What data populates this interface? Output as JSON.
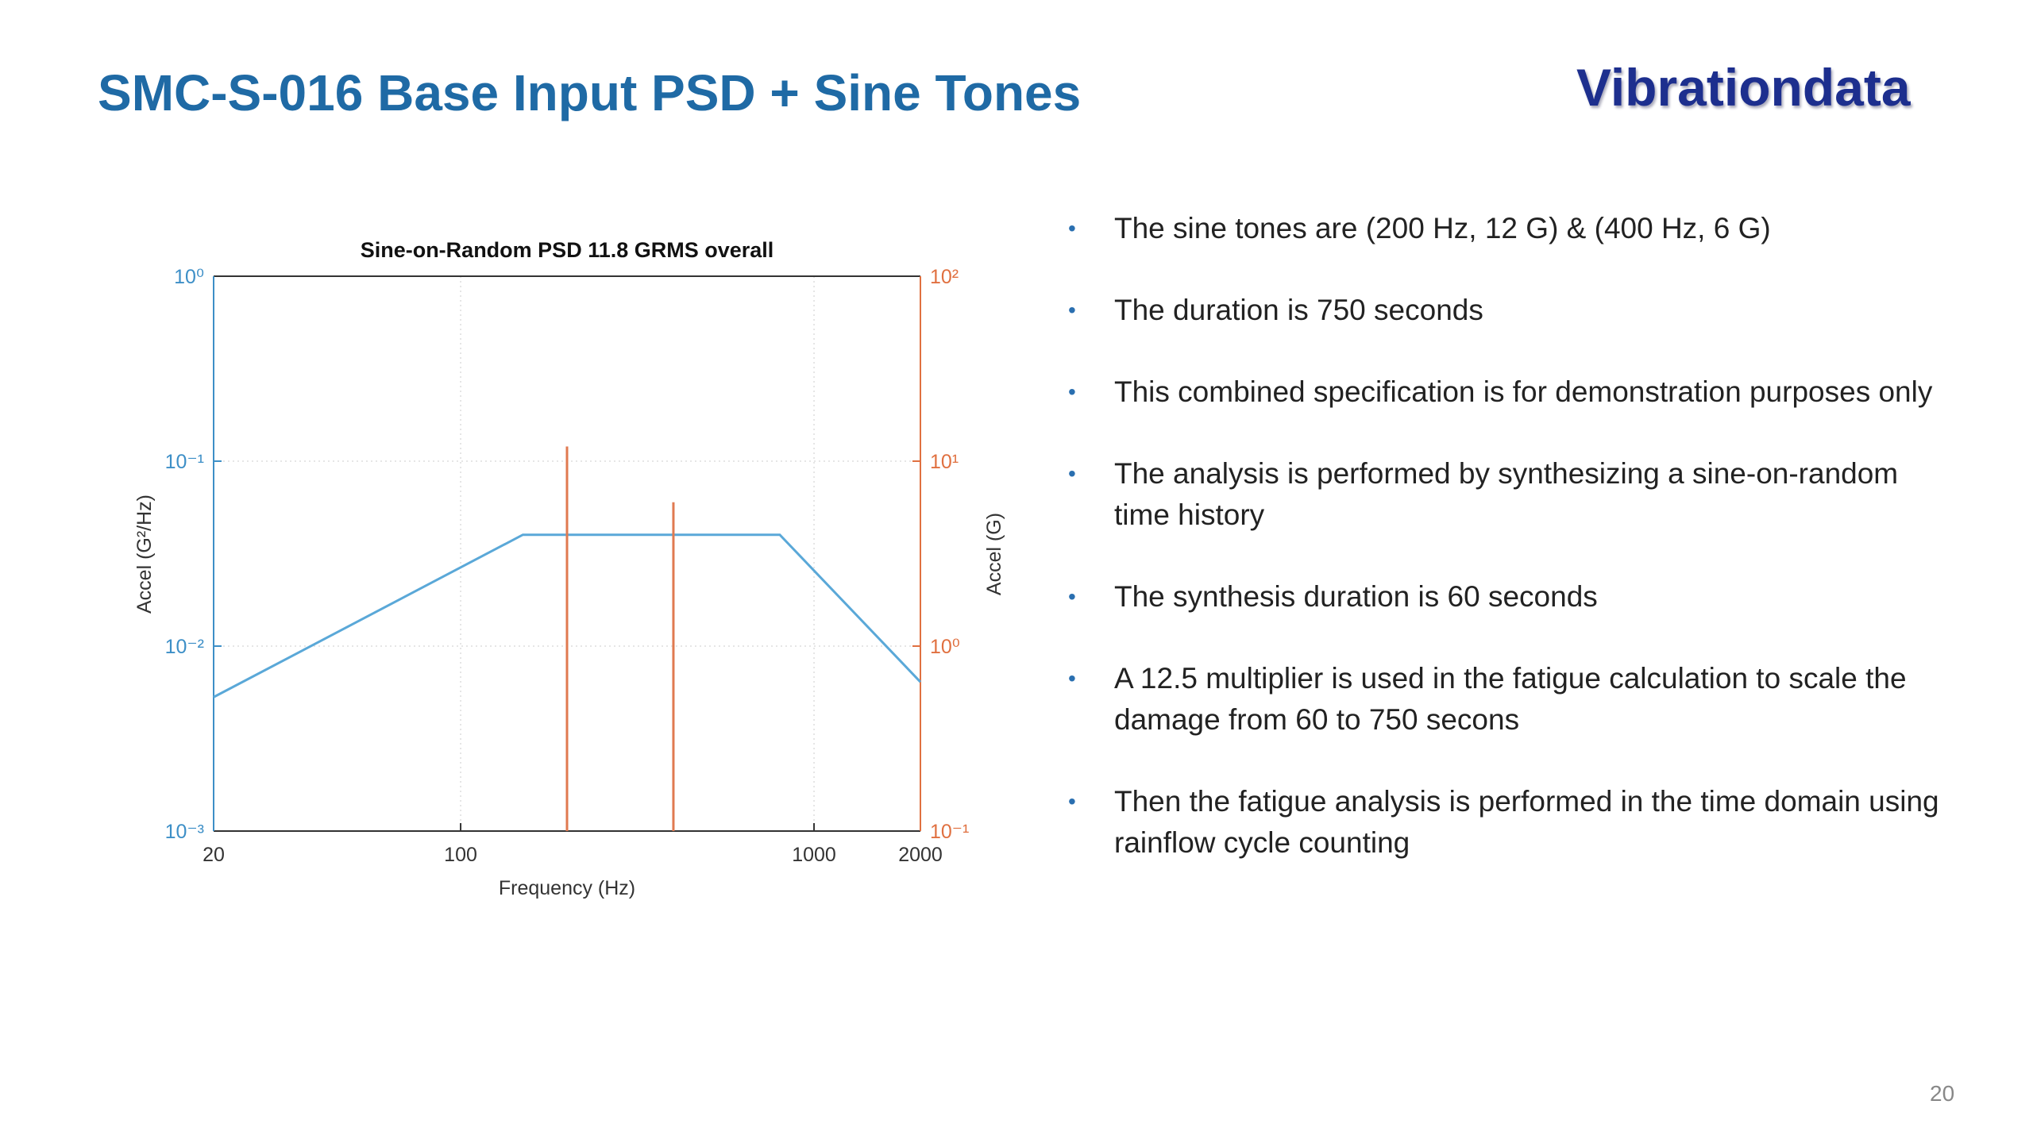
{
  "slide": {
    "title": "SMC-S-016 Base Input PSD + Sine Tones",
    "brand": "Vibrationdata",
    "page_number": "20",
    "bullets": [
      "The sine tones are (200 Hz, 12 G) & (400 Hz, 6 G)",
      "The duration is 750 seconds",
      "This combined specification is for demonstration purposes only",
      "The analysis is performed by synthesizing a sine-on-random time history",
      "The synthesis duration is 60 seconds",
      "A 12.5 multiplier is used in the fatigue calculation to scale the damage from 60 to 750 secons",
      "Then the fatigue analysis is performed in the time domain using rainflow cycle counting"
    ]
  },
  "chart_data": {
    "type": "line",
    "title": "Sine-on-Random PSD     11.8 GRMS overall",
    "xlabel": "Frequency (Hz)",
    "ylabel": "Accel (G²/Hz)",
    "y2label": "Accel (G)",
    "log_x": true,
    "log_y": true,
    "grid": true,
    "xlim": [
      20,
      2000
    ],
    "xticks": [
      20,
      100,
      1000,
      2000
    ],
    "ylim": [
      0.001,
      1
    ],
    "yticks": [
      {
        "value": 0.001,
        "label": "10⁻³"
      },
      {
        "value": 0.01,
        "label": "10⁻²"
      },
      {
        "value": 0.1,
        "label": "10⁻¹"
      },
      {
        "value": 1,
        "label": "10⁰"
      }
    ],
    "y2lim": [
      0.1,
      100
    ],
    "y2ticks": [
      {
        "value": 0.1,
        "label": "10⁻¹"
      },
      {
        "value": 1,
        "label": "10⁰"
      },
      {
        "value": 10,
        "label": "10¹"
      },
      {
        "value": 100,
        "label": "10²"
      }
    ],
    "ycolor": "#3d8fc7",
    "y2color": "#e07040",
    "series": [
      {
        "x": [
          20,
          150,
          800,
          2000
        ],
        "values": [
          0.0053,
          0.04,
          0.04,
          0.0064
        ],
        "color": "#5aa8d8"
      },
      {
        "x": [
          200,
          400
        ],
        "values": [
          12,
          6
        ],
        "color": "#e07a50",
        "axis": "y2",
        "style": "stem"
      }
    ]
  }
}
